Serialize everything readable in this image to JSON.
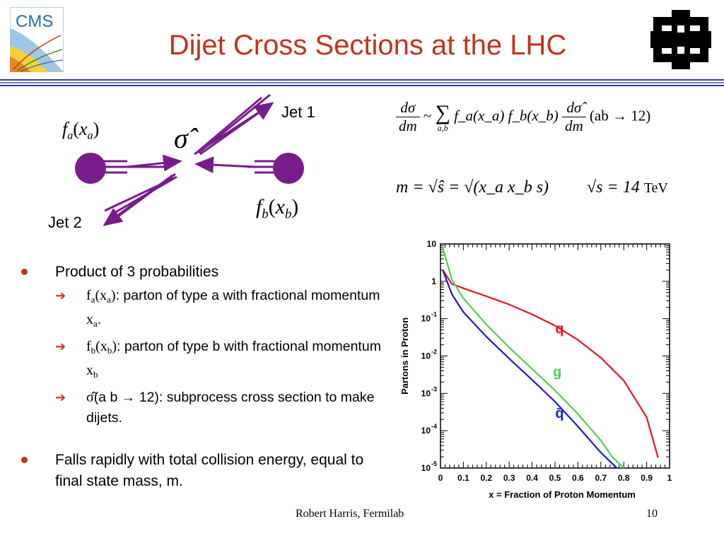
{
  "slide": {
    "title": "Dijet Cross Sections at the LHC",
    "cms_logo_text": "CMS",
    "footer_author": "Robert Harris, Fermilab",
    "page_number": "10"
  },
  "diagram": {
    "jet1_label": "Jet 1",
    "jet2_label": "Jet 2",
    "fa_label": "f",
    "fa_sub": "a",
    "fa_arg": "x",
    "fa_arg_sub": "a",
    "fb_label": "f",
    "fb_sub": "b",
    "fb_arg": "x",
    "fb_arg_sub": "b",
    "sigma_hat": "σ̂",
    "colors": {
      "beam": "#7a1b8c",
      "ball": "#7a1b8c"
    }
  },
  "formulas": {
    "cross_section_num": "dσ",
    "cross_section_den": "dm",
    "tilde": "~",
    "sum_symbol": "∑",
    "sum_sub": "a,b",
    "parton_product": "f_a(x_a) f_b(x_b)",
    "sub_num": "dσ̂",
    "sub_den": "dm",
    "process": "(ab → 12)",
    "mass_relation": "m = √ŝ = √(x_a x_b s)",
    "energy_relation": "√s = 14",
    "energy_unit": "TeV"
  },
  "bullets": [
    {
      "text": "Product of 3 probabilities",
      "sub": [
        {
          "symbol": "f",
          "symbol_sub": "a",
          "arg": "x",
          "arg_sub": "a",
          "text": ": parton of type a with fractional momentum ",
          "tail": "x",
          "tail_sub": "a",
          "tail_end": "."
        },
        {
          "symbol": "f",
          "symbol_sub": "b",
          "arg": "x",
          "arg_sub": "b",
          "text": ": parton of type b with fractional momentum ",
          "tail": "x",
          "tail_sub": "b",
          "tail_end": ""
        },
        {
          "symbol": "σ̂",
          "text": "(a b → 12): subprocess cross section to make dijets."
        }
      ]
    },
    {
      "text": "Falls rapidly with total collision energy, equal to final state mass, m."
    }
  ],
  "chart_data": {
    "type": "line",
    "title": "",
    "xlabel": "x = Fraction of Proton Momentum",
    "ylabel": "Partons in Proton",
    "xlim": [
      0,
      1
    ],
    "ylim": [
      1e-05,
      10
    ],
    "yscale": "log",
    "x_ticks": [
      "0",
      "0.1",
      "0.2",
      "0.3",
      "0.4",
      "0.5",
      "0.6",
      "0.7",
      "0.8",
      "0.9",
      "1"
    ],
    "y_ticks": [
      {
        "base": "10",
        "exp": "",
        "value": 10
      },
      {
        "base": "1",
        "exp": "",
        "value": 1
      },
      {
        "base": "10",
        "exp": "-1",
        "value": 0.1
      },
      {
        "base": "10",
        "exp": "-2",
        "value": 0.01
      },
      {
        "base": "10",
        "exp": "-3",
        "value": 0.001
      },
      {
        "base": "10",
        "exp": "-4",
        "value": 0.0001
      },
      {
        "base": "10",
        "exp": "-5",
        "value": 1e-05
      }
    ],
    "grid": false,
    "series": [
      {
        "name": "q",
        "color": "#e8141c",
        "x": [
          0.01,
          0.05,
          0.1,
          0.2,
          0.3,
          0.4,
          0.5,
          0.6,
          0.7,
          0.8,
          0.9,
          0.95
        ],
        "y": [
          2.0,
          0.85,
          0.65,
          0.4,
          0.24,
          0.13,
          0.065,
          0.027,
          0.009,
          0.0022,
          0.00023,
          1.9e-05
        ]
      },
      {
        "name": "g",
        "color": "#4fd14f",
        "x": [
          0.01,
          0.05,
          0.1,
          0.2,
          0.3,
          0.4,
          0.5,
          0.6,
          0.7,
          0.75,
          0.8
        ],
        "y": [
          8.0,
          1.1,
          0.35,
          0.07,
          0.017,
          0.0045,
          0.0012,
          0.00028,
          5.5e-05,
          2e-05,
          1e-05
        ]
      },
      {
        "name": "q̄",
        "color": "#1a1ae0",
        "x": [
          0.01,
          0.05,
          0.1,
          0.2,
          0.3,
          0.4,
          0.5,
          0.6,
          0.7,
          0.77
        ],
        "y": [
          2.0,
          0.45,
          0.15,
          0.033,
          0.0085,
          0.0023,
          0.0006,
          0.00013,
          2.6e-05,
          1e-05
        ]
      }
    ]
  }
}
